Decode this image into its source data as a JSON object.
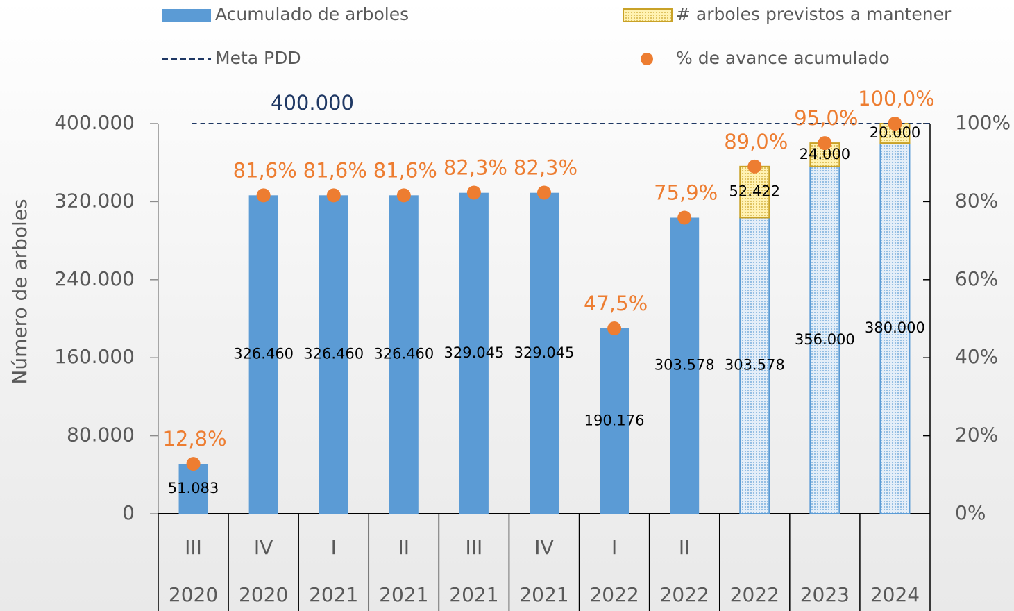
{
  "chart_data": {
    "type": "combo",
    "y_axis_label": "Número de arboles",
    "categories": [
      "III",
      "IV",
      "I",
      "II",
      "III",
      "IV",
      "I",
      "II",
      null,
      null,
      null
    ],
    "category_years": [
      "2020",
      "2020",
      "2021",
      "2021",
      "2021",
      "2021",
      "2022",
      "2022",
      "2022",
      "2023",
      "2024"
    ],
    "series": [
      {
        "name": "Acumulado de arboles",
        "kind": "bar",
        "color": "#5b9bd5",
        "values": [
          51083,
          326460,
          326460,
          326460,
          329045,
          329045,
          190176,
          303578,
          303578,
          356000,
          380000
        ],
        "value_labels": [
          "51.083",
          "326.460",
          "326.460",
          "326.460",
          "329.045",
          "329.045",
          "190.176",
          "303.578",
          "303.578",
          "356.000",
          "380.000"
        ],
        "fills": [
          "solid",
          "solid",
          "solid",
          "solid",
          "solid",
          "solid",
          "solid",
          "solid",
          "dotted",
          "dotted",
          "dotted"
        ]
      },
      {
        "name": "# arboles previstos a mantener",
        "kind": "stacked_bar",
        "color": "#ffe699",
        "border_color": "#c9a227",
        "values": [
          null,
          null,
          null,
          null,
          null,
          null,
          null,
          null,
          52422,
          24000,
          20000
        ],
        "value_labels": [
          null,
          null,
          null,
          null,
          null,
          null,
          null,
          null,
          "52.422",
          "24.000",
          "20.000"
        ]
      },
      {
        "name": "Meta PDD",
        "kind": "hline",
        "color": "#1f3864",
        "value": 400000,
        "value_label": "400.000"
      },
      {
        "name": "% de avance acumulado",
        "kind": "dots",
        "axis": "y2",
        "color": "#ed7d31",
        "values": [
          12.8,
          81.6,
          81.6,
          81.6,
          82.3,
          82.3,
          47.5,
          75.9,
          89.0,
          95.0,
          100.0
        ],
        "value_labels": [
          "12,8%",
          "81,6%",
          "81,6%",
          "81,6%",
          "82,3%",
          "82,3%",
          "47,5%",
          "75,9%",
          "89,0%",
          "95,0%",
          "100,0%"
        ]
      }
    ],
    "ylim": [
      0,
      400000
    ],
    "yticks": [
      0,
      {
        "value": 80000,
        "label": "80.000"
      },
      {
        "value": 160000,
        "label": "160.000"
      },
      {
        "value": 240000,
        "label": "240.000"
      },
      {
        "value": 320000,
        "label": "320.000"
      },
      {
        "value": 400000,
        "label": "400.000"
      }
    ],
    "y2lim": [
      0,
      100
    ],
    "y2ticks": [
      {
        "value": 0,
        "label": "0%"
      },
      {
        "value": 20,
        "label": "20%"
      },
      {
        "value": 40,
        "label": "40%"
      },
      {
        "value": 60,
        "label": "60%"
      },
      {
        "value": 80,
        "label": "80%"
      },
      {
        "value": 100,
        "label": "100%"
      }
    ]
  }
}
